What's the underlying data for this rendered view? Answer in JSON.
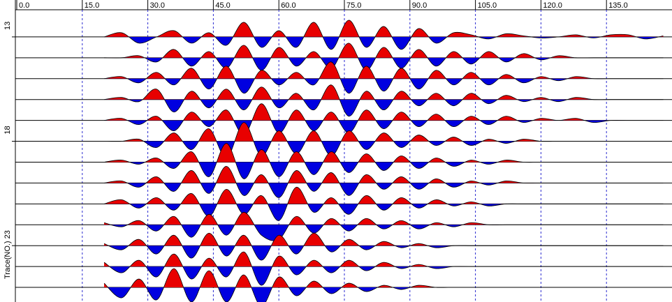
{
  "chart_data": {
    "type": "wiggle",
    "xlim": [
      0,
      150
    ],
    "xticks": [
      {
        "value": 0,
        "label": "0.0"
      },
      {
        "value": 15,
        "label": "15.0"
      },
      {
        "value": 30,
        "label": "30.0"
      },
      {
        "value": 45,
        "label": "45.0"
      },
      {
        "value": 60,
        "label": "60.0"
      },
      {
        "value": 75,
        "label": "75.0"
      },
      {
        "value": 90,
        "label": "90.0"
      },
      {
        "value": 105,
        "label": "105.0"
      },
      {
        "value": 120,
        "label": "120.0"
      },
      {
        "value": 135,
        "label": "135.0"
      }
    ],
    "ylabel": "Trace(NO.)",
    "ylim": [
      11.7,
      25.7
    ],
    "yticks": [
      13,
      18,
      23
    ],
    "grid": true,
    "positive_color": "#e80000",
    "negative_color": "#0000e0",
    "x": [
      20,
      24,
      28,
      32,
      36,
      40,
      44,
      48,
      52,
      56,
      60,
      64,
      68,
      72,
      76,
      80,
      84,
      88,
      92,
      96,
      100,
      104,
      108,
      112,
      116,
      120,
      124,
      128,
      132,
      136,
      140,
      144,
      148
    ],
    "series": [
      {
        "trace": 13,
        "values": [
          0,
          0.2,
          -0.3,
          0,
          0.3,
          -0.3,
          0.2,
          -0.4,
          0.7,
          -0.5,
          0.3,
          -0.5,
          0.7,
          -0.6,
          0.8,
          -0.5,
          0.5,
          -0.6,
          0.4,
          -0.3,
          0.2,
          0.1,
          -0.1,
          0.15,
          0.05,
          -0.05,
          0,
          0.1,
          -0.05,
          0.1,
          0.1,
          -0.1,
          0.05
        ]
      },
      {
        "trace": 14,
        "values": [
          0,
          0,
          0.1,
          -0.2,
          0.4,
          -0.4,
          0.3,
          -0.5,
          0.6,
          -0.6,
          0.5,
          -0.4,
          0.3,
          -0.5,
          0.7,
          -0.6,
          0.5,
          -0.5,
          0.4,
          -0.4,
          0.3,
          -0.3,
          0.3,
          -0.2,
          0.2,
          -0.1,
          0.1,
          0,
          0,
          0,
          0,
          0,
          0
        ]
      },
      {
        "trace": 15,
        "values": [
          0,
          0.1,
          -0.2,
          0.3,
          -0.3,
          0.5,
          -0.5,
          0.6,
          -0.7,
          0.4,
          -0.3,
          0.3,
          -0.3,
          0.8,
          -0.7,
          0.6,
          -0.6,
          0.5,
          -0.5,
          0.4,
          -0.3,
          0.3,
          -0.3,
          0.2,
          -0.2,
          0.1,
          -0.1,
          0.1,
          0,
          0,
          0,
          0,
          0
        ]
      },
      {
        "trace": 16,
        "values": [
          0,
          0.1,
          -0.1,
          0.5,
          -0.6,
          0.4,
          -0.4,
          0.5,
          -0.5,
          0.6,
          -0.4,
          0.3,
          -0.5,
          0.7,
          -0.8,
          0.4,
          -0.5,
          0.4,
          -0.3,
          0.3,
          -0.3,
          0.3,
          -0.2,
          0.2,
          -0.1,
          0.1,
          -0.1,
          0.1,
          0,
          0,
          0,
          0,
          0
        ]
      },
      {
        "trace": 17,
        "values": [
          0,
          0.1,
          -0.2,
          0.2,
          -0.5,
          0.4,
          -0.3,
          0.5,
          -0.7,
          0.8,
          -0.6,
          0.5,
          -0.5,
          0.4,
          -0.6,
          0.5,
          -0.4,
          0.4,
          -0.3,
          0.3,
          -0.3,
          0.2,
          -0.2,
          0.2,
          -0.1,
          0.1,
          0,
          0.1,
          -0.1,
          0,
          0,
          0,
          0
        ]
      },
      {
        "trace": 18,
        "values": [
          0,
          0,
          0.1,
          -0.3,
          0.4,
          -0.4,
          0.6,
          -0.8,
          0.9,
          -0.7,
          0.5,
          -0.6,
          0.5,
          -0.7,
          0.5,
          -0.4,
          0.4,
          -0.3,
          0.3,
          -0.2,
          0.2,
          -0.2,
          0.1,
          -0.1,
          0.1,
          0,
          0,
          0,
          0,
          0,
          0,
          0,
          0
        ]
      },
      {
        "trace": 19,
        "values": [
          0,
          0.1,
          -0.1,
          0.2,
          -0.3,
          0.5,
          -0.7,
          0.9,
          -0.8,
          0.6,
          -0.7,
          0.5,
          -0.6,
          0.5,
          -0.5,
          0.4,
          -0.4,
          0.3,
          -0.3,
          0.2,
          -0.2,
          0.1,
          -0.1,
          0.1,
          0,
          0,
          0,
          0,
          0,
          0,
          0,
          0,
          0
        ]
      },
      {
        "trace": 20,
        "values": [
          0,
          0.1,
          -0.2,
          0.3,
          -0.4,
          0.6,
          -0.5,
          0.8,
          -0.6,
          0.4,
          -0.7,
          0.6,
          -0.4,
          0.5,
          -0.6,
          0.4,
          -0.3,
          0.3,
          -0.3,
          0.2,
          -0.2,
          0.1,
          -0.1,
          0.1,
          0,
          0,
          0,
          0,
          0,
          0,
          0,
          0,
          0
        ]
      },
      {
        "trace": 21,
        "values": [
          0,
          0.2,
          -0.2,
          0.3,
          -0.3,
          0.5,
          -0.6,
          0.7,
          -0.5,
          0.4,
          -0.8,
          0.8,
          -0.4,
          0.3,
          -0.5,
          0.4,
          -0.3,
          0.3,
          -0.2,
          0.2,
          -0.1,
          0.1,
          -0.1,
          0,
          0,
          0,
          0,
          0,
          0,
          0,
          0,
          0,
          0
        ]
      },
      {
        "trace": 22,
        "values": [
          0.1,
          -0.1,
          0.2,
          -0.3,
          0.4,
          -0.6,
          0.5,
          -0.5,
          0.6,
          -0.5,
          -0.7,
          0.4,
          -0.4,
          0.3,
          -0.3,
          0.3,
          -0.2,
          0.2,
          -0.2,
          0.1,
          -0.1,
          0.1,
          0,
          0,
          0,
          0,
          0,
          0,
          0,
          0,
          0,
          0,
          0
        ]
      },
      {
        "trace": 23,
        "values": [
          0.1,
          -0.2,
          0.3,
          -0.4,
          0.5,
          -0.6,
          0.6,
          -0.5,
          0.5,
          -0.7,
          0.5,
          -0.4,
          0.6,
          -0.3,
          0.3,
          -0.2,
          0.2,
          -0.1,
          0.1,
          -0.1,
          0,
          0,
          0,
          0,
          0,
          0,
          0,
          0,
          0,
          0,
          0,
          0,
          0
        ]
      },
      {
        "trace": 24,
        "values": [
          0.2,
          -0.3,
          0.3,
          -0.5,
          0.6,
          -0.6,
          0.4,
          -0.5,
          0.7,
          -0.9,
          0.5,
          -0.4,
          0.3,
          -0.3,
          0.3,
          -0.2,
          0.2,
          -0.1,
          0.1,
          -0.1,
          0,
          0,
          0,
          0,
          0,
          0,
          0,
          0,
          0,
          0,
          0,
          0,
          0
        ]
      },
      {
        "trace": 25,
        "values": [
          0.2,
          -0.5,
          0.4,
          -0.6,
          0.9,
          -0.7,
          0.8,
          -0.7,
          0.6,
          -0.9,
          0.5,
          -0.4,
          0.3,
          -0.3,
          0.2,
          -0.2,
          0.1,
          -0.1,
          0.1,
          0,
          0,
          0,
          0,
          0,
          0,
          0,
          0,
          0,
          0,
          0,
          0,
          0,
          0
        ]
      }
    ]
  }
}
